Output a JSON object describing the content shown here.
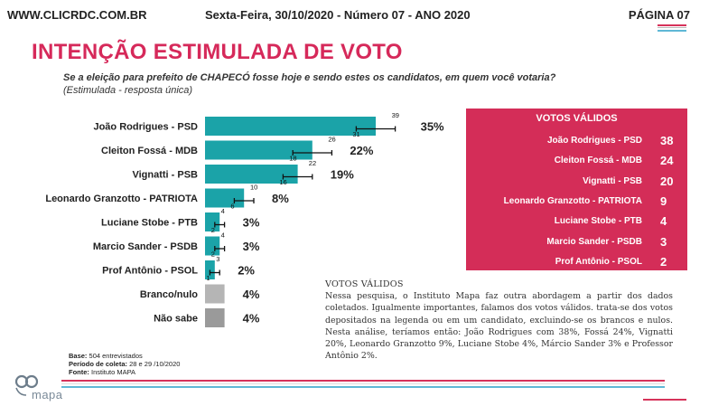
{
  "header": {
    "site": "WWW.CLICRDC.COM.BR",
    "date_issue": "Sexta-Feira, 30/10/2020 - Número 07 - ANO 2020",
    "page": "PÁGINA 07"
  },
  "title": "INTENÇÃO ESTIMULADA DE VOTO",
  "question": "Se a eleição para prefeito de CHAPECÓ fosse hoje e sendo estes os candidatos, em quem você votaria?",
  "subtitle": "(Estimulada - resposta única)",
  "chart_data": {
    "type": "bar",
    "orientation": "horizontal",
    "unit": "%",
    "categories": [
      "João Rodrigues - PSD",
      "Cleiton Fossá - MDB",
      "Vignatti - PSB",
      "Leonardo Granzotto - PATRIOTA",
      "Luciane Stobe - PTB",
      "Marcio Sander - PSDB",
      "Prof Antônio - PSOL",
      "Branco/nulo",
      "Não sabe"
    ],
    "values": [
      35,
      22,
      19,
      8,
      3,
      3,
      2,
      4,
      4
    ],
    "labels": [
      "35%",
      "22%",
      "19%",
      "8%",
      "3%",
      "3%",
      "2%",
      "4%",
      "4%"
    ],
    "error_upper": [
      "39",
      "26",
      "22",
      "10",
      "4",
      "4",
      "3",
      null,
      null
    ],
    "error_lower": [
      "31",
      "18",
      "16",
      "6",
      "2",
      "2",
      "1",
      null,
      null
    ],
    "colors": [
      "#1ba3a8",
      "#1ba3a8",
      "#1ba3a8",
      "#1ba3a8",
      "#1ba3a8",
      "#1ba3a8",
      "#1ba3a8",
      "#b5b5b5",
      "#9a9a9a"
    ],
    "grid": false,
    "legend": "none"
  },
  "valid_votes": {
    "title": "VOTOS VÁLIDOS",
    "rows": [
      {
        "name": "João Rodrigues - PSD",
        "value": "38"
      },
      {
        "name": "Cleiton Fossá - MDB",
        "value": "24"
      },
      {
        "name": "Vignatti - PSB",
        "value": "20"
      },
      {
        "name": "Leonardo Granzotto - PATRIOTA",
        "value": "9"
      },
      {
        "name": "Luciane Stobe - PTB",
        "value": "4"
      },
      {
        "name": "Marcio Sander - PSDB",
        "value": "3"
      },
      {
        "name": "Prof Antônio - PSOL",
        "value": "2"
      }
    ],
    "color": "#d42d58"
  },
  "note": {
    "title": "VOTOS VÁLIDOS",
    "body": "Nessa pesquisa, o Instituto Mapa faz outra abordagem a partir dos dados coletados. Igualmente importantes, falamos dos votos válidos. trata-se dos votos depositados na legenda ou em um candidato, excluindo-se os brancos e nulos. Nesta análise, teríamos então: João Rodrigues com 38%, Fossá 24%, Vignatti 20%, Leonardo Granzotto 9%, Luciane Stobe 4%, Márcio Sander 3% e Professor Antônio 2%."
  },
  "footer": {
    "base_label": "Base:",
    "base_value": "504 entrevistados",
    "period_label": "Período de coleta:",
    "period_value": "28 e 29 /10/2020",
    "source_label": "Fonte:",
    "source_value": "Instituto MAPA",
    "logo_text": "mapa"
  }
}
